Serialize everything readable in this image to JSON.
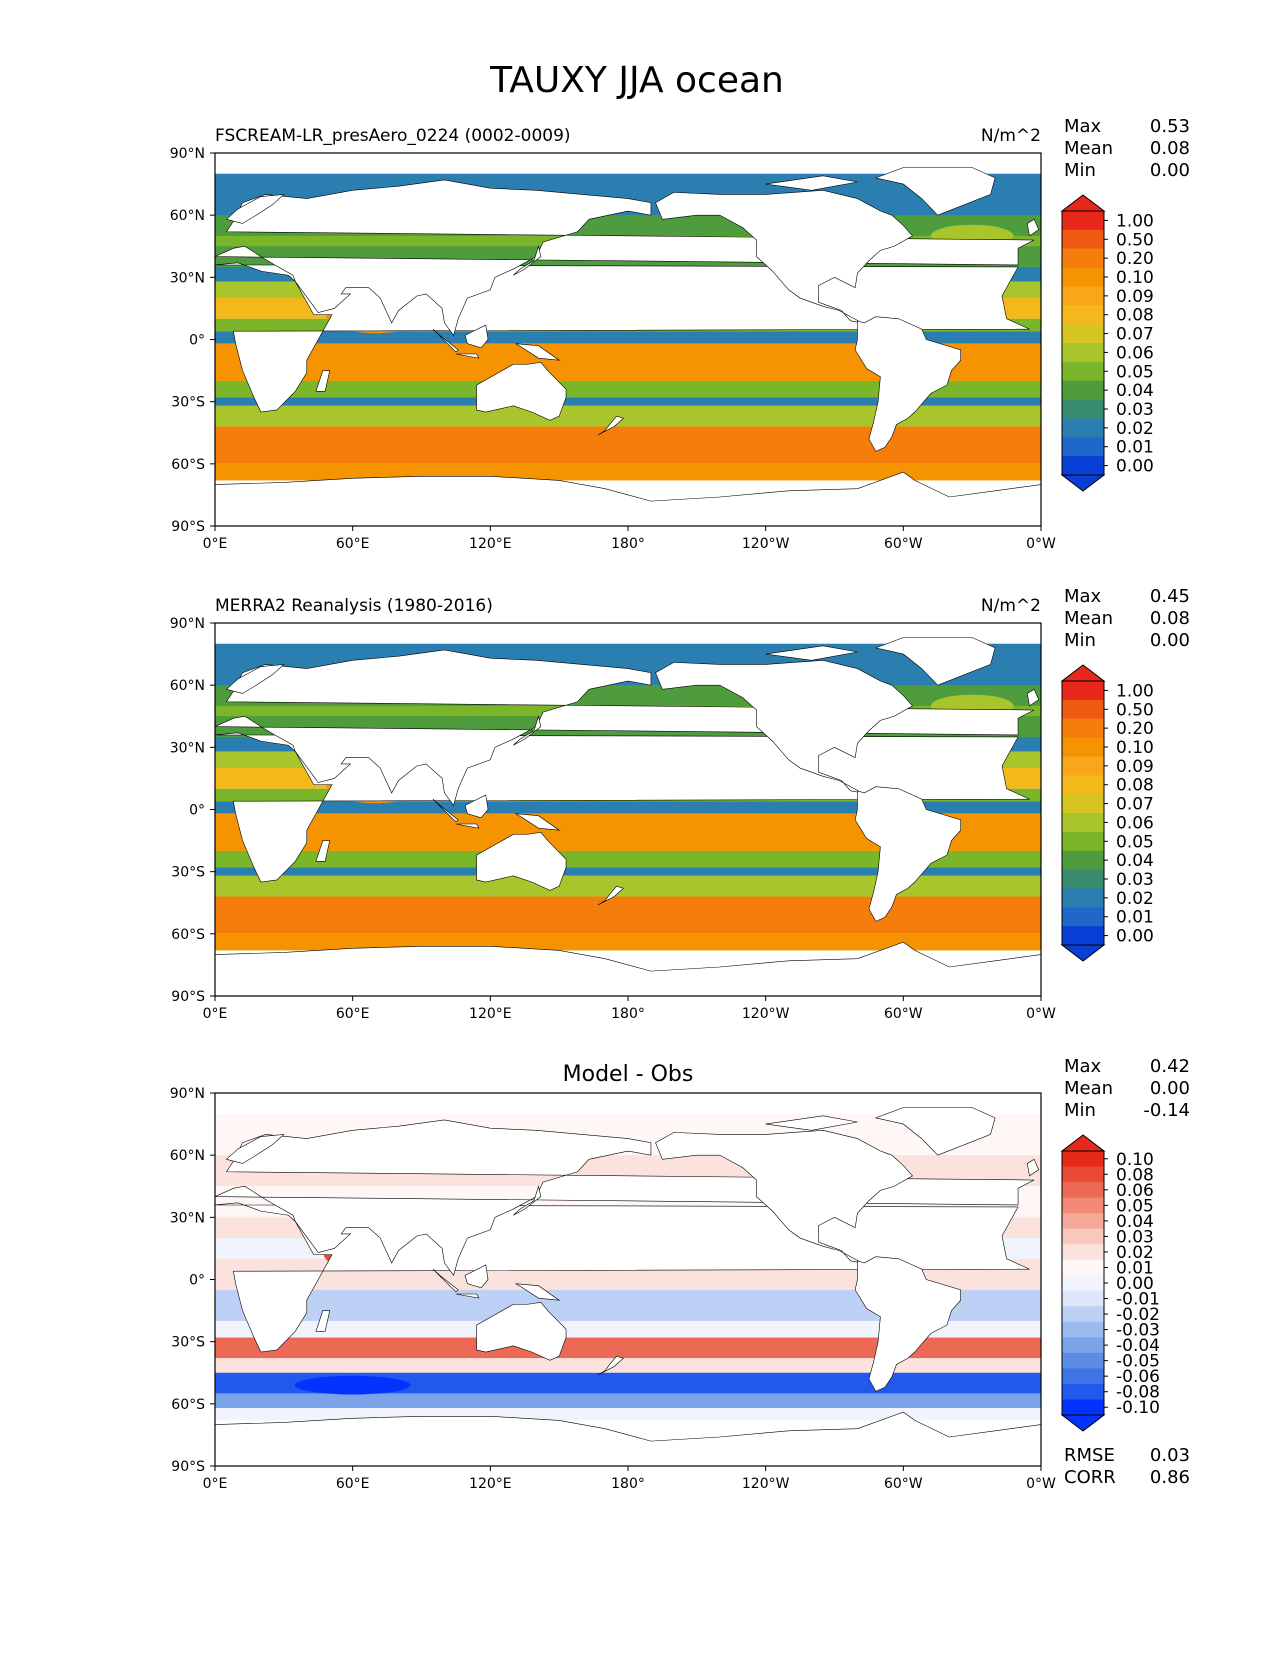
{
  "figure_title": "TAUXY JJA ocean",
  "colors": {
    "ocean_seq": [
      "#0a3fd6",
      "#1f67c8",
      "#2b7fb0",
      "#3a8c6e",
      "#4e9c3e",
      "#7ab52a",
      "#a8c62b",
      "#d8c421",
      "#f5b81b",
      "#f9a61a",
      "#f59300",
      "#f57e0a",
      "#f05a10",
      "#e8281a"
    ],
    "diff": [
      "#0433ff",
      "#2159ec",
      "#3f74e6",
      "#5d8ce4",
      "#7aa3ea",
      "#9bbbf0",
      "#bdd0f5",
      "#dde6fa",
      "#f1f4fd",
      "#fff7f5",
      "#fbe2dc",
      "#f7c8bd",
      "#f4a898",
      "#f18a77",
      "#ec6a55",
      "#e84a35",
      "#e52a1a"
    ],
    "land": "#ffffff",
    "coast": "#000000"
  },
  "chart_data": [
    {
      "type": "heatmap",
      "panel_title_left": "FSCREAM-LR_presAero_0224 (0002-0009)",
      "panel_title_center": "",
      "panel_title_right": "N/m^2",
      "stats": [
        {
          "label": "Max",
          "value": "0.53"
        },
        {
          "label": "Mean",
          "value": "0.08"
        },
        {
          "label": "Min",
          "value": "0.00"
        }
      ],
      "extra_stats": [],
      "colorbar_levels": [
        "1.00",
        "0.50",
        "0.20",
        "0.10",
        "0.09",
        "0.08",
        "0.07",
        "0.06",
        "0.05",
        "0.04",
        "0.03",
        "0.02",
        "0.01",
        "0.00"
      ],
      "colormap": "ocean_seq",
      "x_ticks": [
        "0°E",
        "60°E",
        "120°E",
        "180°",
        "120°W",
        "60°W",
        "0°W"
      ],
      "y_ticks": [
        "90°N",
        "60°N",
        "30°N",
        "0°",
        "30°S",
        "60°S",
        "90°S"
      ],
      "xlim": [
        0,
        360
      ],
      "ylim": [
        -90,
        90
      ]
    },
    {
      "type": "heatmap",
      "panel_title_left": "MERRA2 Reanalysis (1980-2016)",
      "panel_title_center": "",
      "panel_title_right": "N/m^2",
      "stats": [
        {
          "label": "Max",
          "value": "0.45"
        },
        {
          "label": "Mean",
          "value": "0.08"
        },
        {
          "label": "Min",
          "value": "0.00"
        }
      ],
      "extra_stats": [],
      "colorbar_levels": [
        "1.00",
        "0.50",
        "0.20",
        "0.10",
        "0.09",
        "0.08",
        "0.07",
        "0.06",
        "0.05",
        "0.04",
        "0.03",
        "0.02",
        "0.01",
        "0.00"
      ],
      "colormap": "ocean_seq",
      "x_ticks": [
        "0°E",
        "60°E",
        "120°E",
        "180°",
        "120°W",
        "60°W",
        "0°W"
      ],
      "y_ticks": [
        "90°N",
        "60°N",
        "30°N",
        "0°",
        "30°S",
        "60°S",
        "90°S"
      ],
      "xlim": [
        0,
        360
      ],
      "ylim": [
        -90,
        90
      ]
    },
    {
      "type": "heatmap",
      "panel_title_left": "",
      "panel_title_center": "Model - Obs",
      "panel_title_right": "",
      "stats": [
        {
          "label": "Max",
          "value": "0.42"
        },
        {
          "label": "Mean",
          "value": "0.00"
        },
        {
          "label": "Min",
          "value": "-0.14"
        }
      ],
      "extra_stats": [
        {
          "label": "RMSE",
          "value": "0.03"
        },
        {
          "label": "CORR",
          "value": "0.86"
        }
      ],
      "colorbar_levels": [
        "0.10",
        "0.08",
        "0.06",
        "0.05",
        "0.04",
        "0.03",
        "0.02",
        "0.01",
        "0.00",
        "-0.01",
        "-0.02",
        "-0.03",
        "-0.04",
        "-0.05",
        "-0.06",
        "-0.08",
        "-0.10"
      ],
      "colormap": "diff",
      "x_ticks": [
        "0°E",
        "60°E",
        "120°E",
        "180°",
        "120°W",
        "60°W",
        "0°W"
      ],
      "y_ticks": [
        "90°N",
        "60°N",
        "30°N",
        "0°",
        "30°S",
        "60°S",
        "90°S"
      ],
      "xlim": [
        0,
        360
      ],
      "ylim": [
        -90,
        90
      ]
    }
  ]
}
